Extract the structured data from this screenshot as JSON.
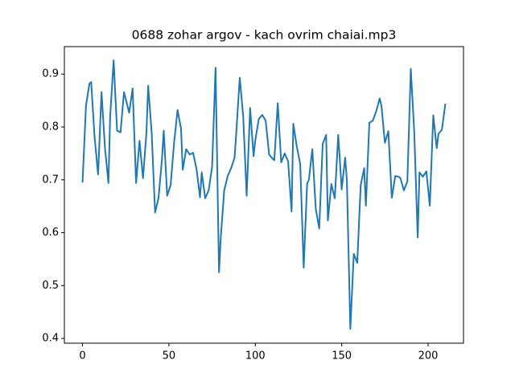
{
  "chart_data": {
    "type": "line",
    "title": "0688 zohar argov - kach ovrim chaiai.mp3",
    "x": [
      0,
      2,
      4,
      5,
      7,
      9,
      11,
      13,
      15,
      16,
      18,
      20,
      22,
      24,
      26,
      27,
      29,
      31,
      33,
      35,
      37,
      38,
      40,
      42,
      44,
      46,
      47,
      49,
      51,
      53,
      55,
      57,
      58,
      60,
      62,
      64,
      66,
      68,
      69,
      71,
      73,
      75,
      77,
      79,
      80,
      82,
      84,
      86,
      88,
      89,
      91,
      93,
      95,
      97,
      99,
      100,
      102,
      104,
      106,
      108,
      110,
      111,
      113,
      115,
      117,
      119,
      121,
      122,
      124,
      126,
      128,
      130,
      131,
      133,
      135,
      137,
      139,
      141,
      142,
      144,
      146,
      148,
      150,
      152,
      153,
      155,
      157,
      159,
      161,
      163,
      164,
      166,
      168,
      170,
      172,
      173,
      175,
      177,
      179,
      181,
      183,
      184,
      186,
      188,
      190,
      192,
      194,
      195,
      197,
      199,
      201,
      203,
      205,
      206,
      208,
      210
    ],
    "series": [
      {
        "name": null,
        "color": "#1f77b4",
        "values": [
          0.695,
          0.84,
          0.882,
          0.885,
          0.78,
          0.71,
          0.866,
          0.76,
          0.694,
          0.82,
          0.926,
          0.793,
          0.79,
          0.866,
          0.84,
          0.827,
          0.873,
          0.694,
          0.774,
          0.703,
          0.79,
          0.878,
          0.79,
          0.638,
          0.666,
          0.74,
          0.793,
          0.67,
          0.69,
          0.77,
          0.832,
          0.797,
          0.719,
          0.758,
          0.748,
          0.751,
          0.72,
          0.667,
          0.714,
          0.665,
          0.68,
          0.725,
          0.912,
          0.525,
          0.59,
          0.68,
          0.707,
          0.722,
          0.742,
          0.79,
          0.893,
          0.82,
          0.67,
          0.836,
          0.745,
          0.775,
          0.815,
          0.823,
          0.812,
          0.748,
          0.74,
          0.737,
          0.845,
          0.733,
          0.75,
          0.735,
          0.64,
          0.806,
          0.763,
          0.73,
          0.534,
          0.693,
          0.7,
          0.758,
          0.645,
          0.608,
          0.768,
          0.785,
          0.623,
          0.692,
          0.665,
          0.785,
          0.682,
          0.742,
          0.7,
          0.418,
          0.56,
          0.543,
          0.69,
          0.722,
          0.651,
          0.808,
          0.812,
          0.83,
          0.854,
          0.84,
          0.77,
          0.792,
          0.666,
          0.707,
          0.706,
          0.703,
          0.68,
          0.697,
          0.91,
          0.79,
          0.591,
          0.714,
          0.706,
          0.716,
          0.651,
          0.822,
          0.76,
          0.787,
          0.795,
          0.844
        ]
      }
    ],
    "xlim": [
      -10.5,
      220.5
    ],
    "xticks": [
      0,
      50,
      100,
      150,
      200
    ],
    "ylim": [
      0.391,
      0.952
    ],
    "yticks": [
      0.4,
      0.5,
      0.6,
      0.7,
      0.8,
      0.9
    ]
  }
}
